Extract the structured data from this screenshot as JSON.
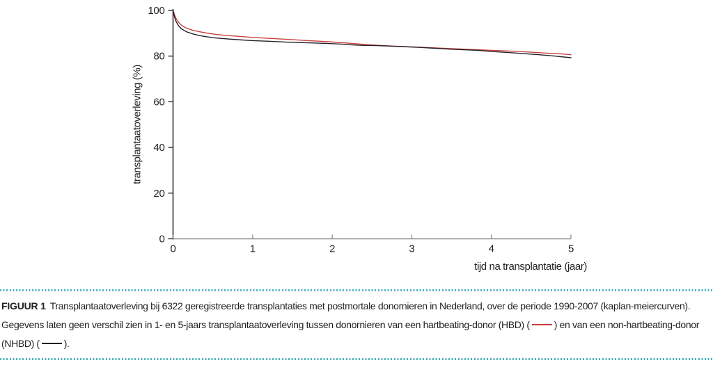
{
  "chart_data": {
    "type": "line",
    "title": "",
    "xlabel": "tijd na transplantatie (jaar)",
    "ylabel": "transplantaatoverleving (%)",
    "xlim": [
      0,
      5
    ],
    "ylim": [
      0,
      100
    ],
    "xticks": [
      0,
      1,
      2,
      3,
      4,
      5
    ],
    "yticks": [
      0,
      20,
      40,
      60,
      80,
      100
    ],
    "grid": false,
    "legend_position": "described-in-caption",
    "series": [
      {
        "name": "hartbeating-donor (HBD)",
        "color": "#c9413e",
        "points": [
          [
            0,
            100
          ],
          [
            0.02,
            98
          ],
          [
            0.04,
            96.3
          ],
          [
            0.07,
            94.8
          ],
          [
            0.1,
            93.7
          ],
          [
            0.14,
            92.8
          ],
          [
            0.18,
            92.1
          ],
          [
            0.25,
            91.3
          ],
          [
            0.33,
            90.7
          ],
          [
            0.42,
            90.1
          ],
          [
            0.52,
            89.6
          ],
          [
            0.65,
            89.1
          ],
          [
            0.8,
            88.7
          ],
          [
            1.0,
            88.2
          ],
          [
            1.2,
            87.8
          ],
          [
            1.45,
            87.3
          ],
          [
            1.7,
            86.8
          ],
          [
            1.95,
            86.3
          ],
          [
            2.15,
            85.8
          ],
          [
            2.3,
            85.4
          ],
          [
            2.45,
            85.0
          ],
          [
            2.6,
            84.7
          ],
          [
            2.75,
            84.4
          ],
          [
            2.95,
            84.1
          ],
          [
            3.15,
            83.8
          ],
          [
            3.35,
            83.5
          ],
          [
            3.55,
            83.2
          ],
          [
            3.75,
            82.9
          ],
          [
            3.95,
            82.6
          ],
          [
            4.15,
            82.3
          ],
          [
            4.35,
            82.0
          ],
          [
            4.55,
            81.6
          ],
          [
            4.75,
            81.2
          ],
          [
            4.9,
            80.9
          ],
          [
            5.0,
            80.6
          ]
        ]
      },
      {
        "name": "non-hartbeating-donor (NHBD)",
        "color": "#25212b",
        "points": [
          [
            0,
            100
          ],
          [
            0.02,
            97
          ],
          [
            0.04,
            95
          ],
          [
            0.07,
            93.3
          ],
          [
            0.1,
            92.1
          ],
          [
            0.14,
            91.2
          ],
          [
            0.18,
            90.5
          ],
          [
            0.25,
            89.7
          ],
          [
            0.33,
            89.0
          ],
          [
            0.42,
            88.5
          ],
          [
            0.52,
            88.0
          ],
          [
            0.65,
            87.6
          ],
          [
            0.8,
            87.2
          ],
          [
            1.0,
            86.8
          ],
          [
            1.2,
            86.5
          ],
          [
            1.45,
            86.1
          ],
          [
            1.7,
            85.8
          ],
          [
            1.95,
            85.5
          ],
          [
            2.1,
            85.3
          ],
          [
            2.25,
            84.9
          ],
          [
            2.4,
            84.7
          ],
          [
            2.55,
            84.6
          ],
          [
            2.7,
            84.4
          ],
          [
            2.9,
            84.1
          ],
          [
            3.1,
            83.8
          ],
          [
            3.3,
            83.4
          ],
          [
            3.5,
            83.0
          ],
          [
            3.7,
            82.7
          ],
          [
            3.85,
            82.5
          ],
          [
            4.0,
            82.0
          ],
          [
            4.2,
            81.6
          ],
          [
            4.4,
            81.1
          ],
          [
            4.6,
            80.6
          ],
          [
            4.8,
            80.0
          ],
          [
            5.0,
            79.3
          ]
        ]
      }
    ]
  },
  "axes": {
    "y_axis_color": "#231f20",
    "x_axis_color": "#8d8f92",
    "tick_label_color": "#231f20",
    "tick_font_size": 15
  },
  "caption": {
    "label": "FIGUUR 1",
    "text_before_hbd_dash": "Transplantaatoverleving bij 6322 geregistreerde transplantaties met postmortale donornieren in Nederland, over de periode 1990-2007 (kaplan-meiercurven). Gegevens laten geen verschil zien in 1- en 5-jaars transplantaatoverleving tussen donornieren van een hartbeating-donor (HBD) (",
    "text_between_dashes": ") en van een non-hartbeating-donor (NHBD) (",
    "text_after_nhbd_dash": ").",
    "hbd_dash_color": "#c9413e",
    "nhbd_dash_color": "#231f20",
    "border_color": "#4ab5c4"
  }
}
